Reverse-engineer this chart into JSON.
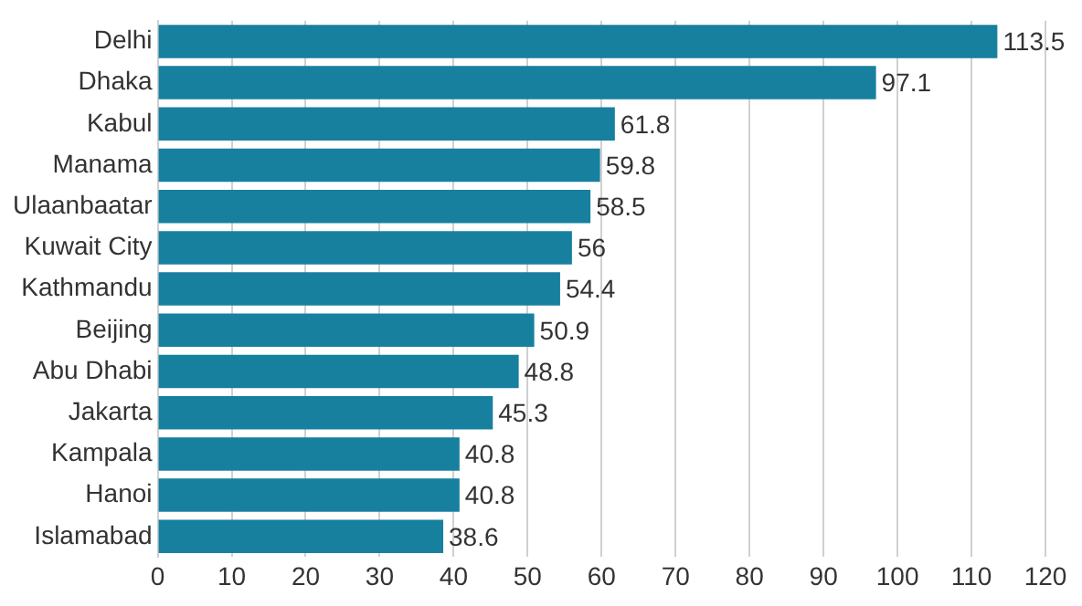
{
  "chart_data": {
    "type": "bar",
    "orientation": "horizontal",
    "categories": [
      "Delhi",
      "Dhaka",
      "Kabul",
      "Manama",
      "Ulaanbaatar",
      "Kuwait City",
      "Kathmandu",
      "Beijing",
      "Abu Dhabi",
      "Jakarta",
      "Kampala",
      "Hanoi",
      "Islamabad"
    ],
    "values": [
      113.5,
      97.1,
      61.8,
      59.8,
      58.5,
      56,
      54.4,
      50.9,
      48.8,
      45.3,
      40.8,
      40.8,
      38.6
    ],
    "color": "#17809f",
    "xlim": [
      0,
      120
    ],
    "xticks": [
      0,
      10,
      20,
      30,
      40,
      50,
      60,
      70,
      80,
      90,
      100,
      110,
      120
    ],
    "grid": "x",
    "data_labels": true,
    "legend": false
  }
}
